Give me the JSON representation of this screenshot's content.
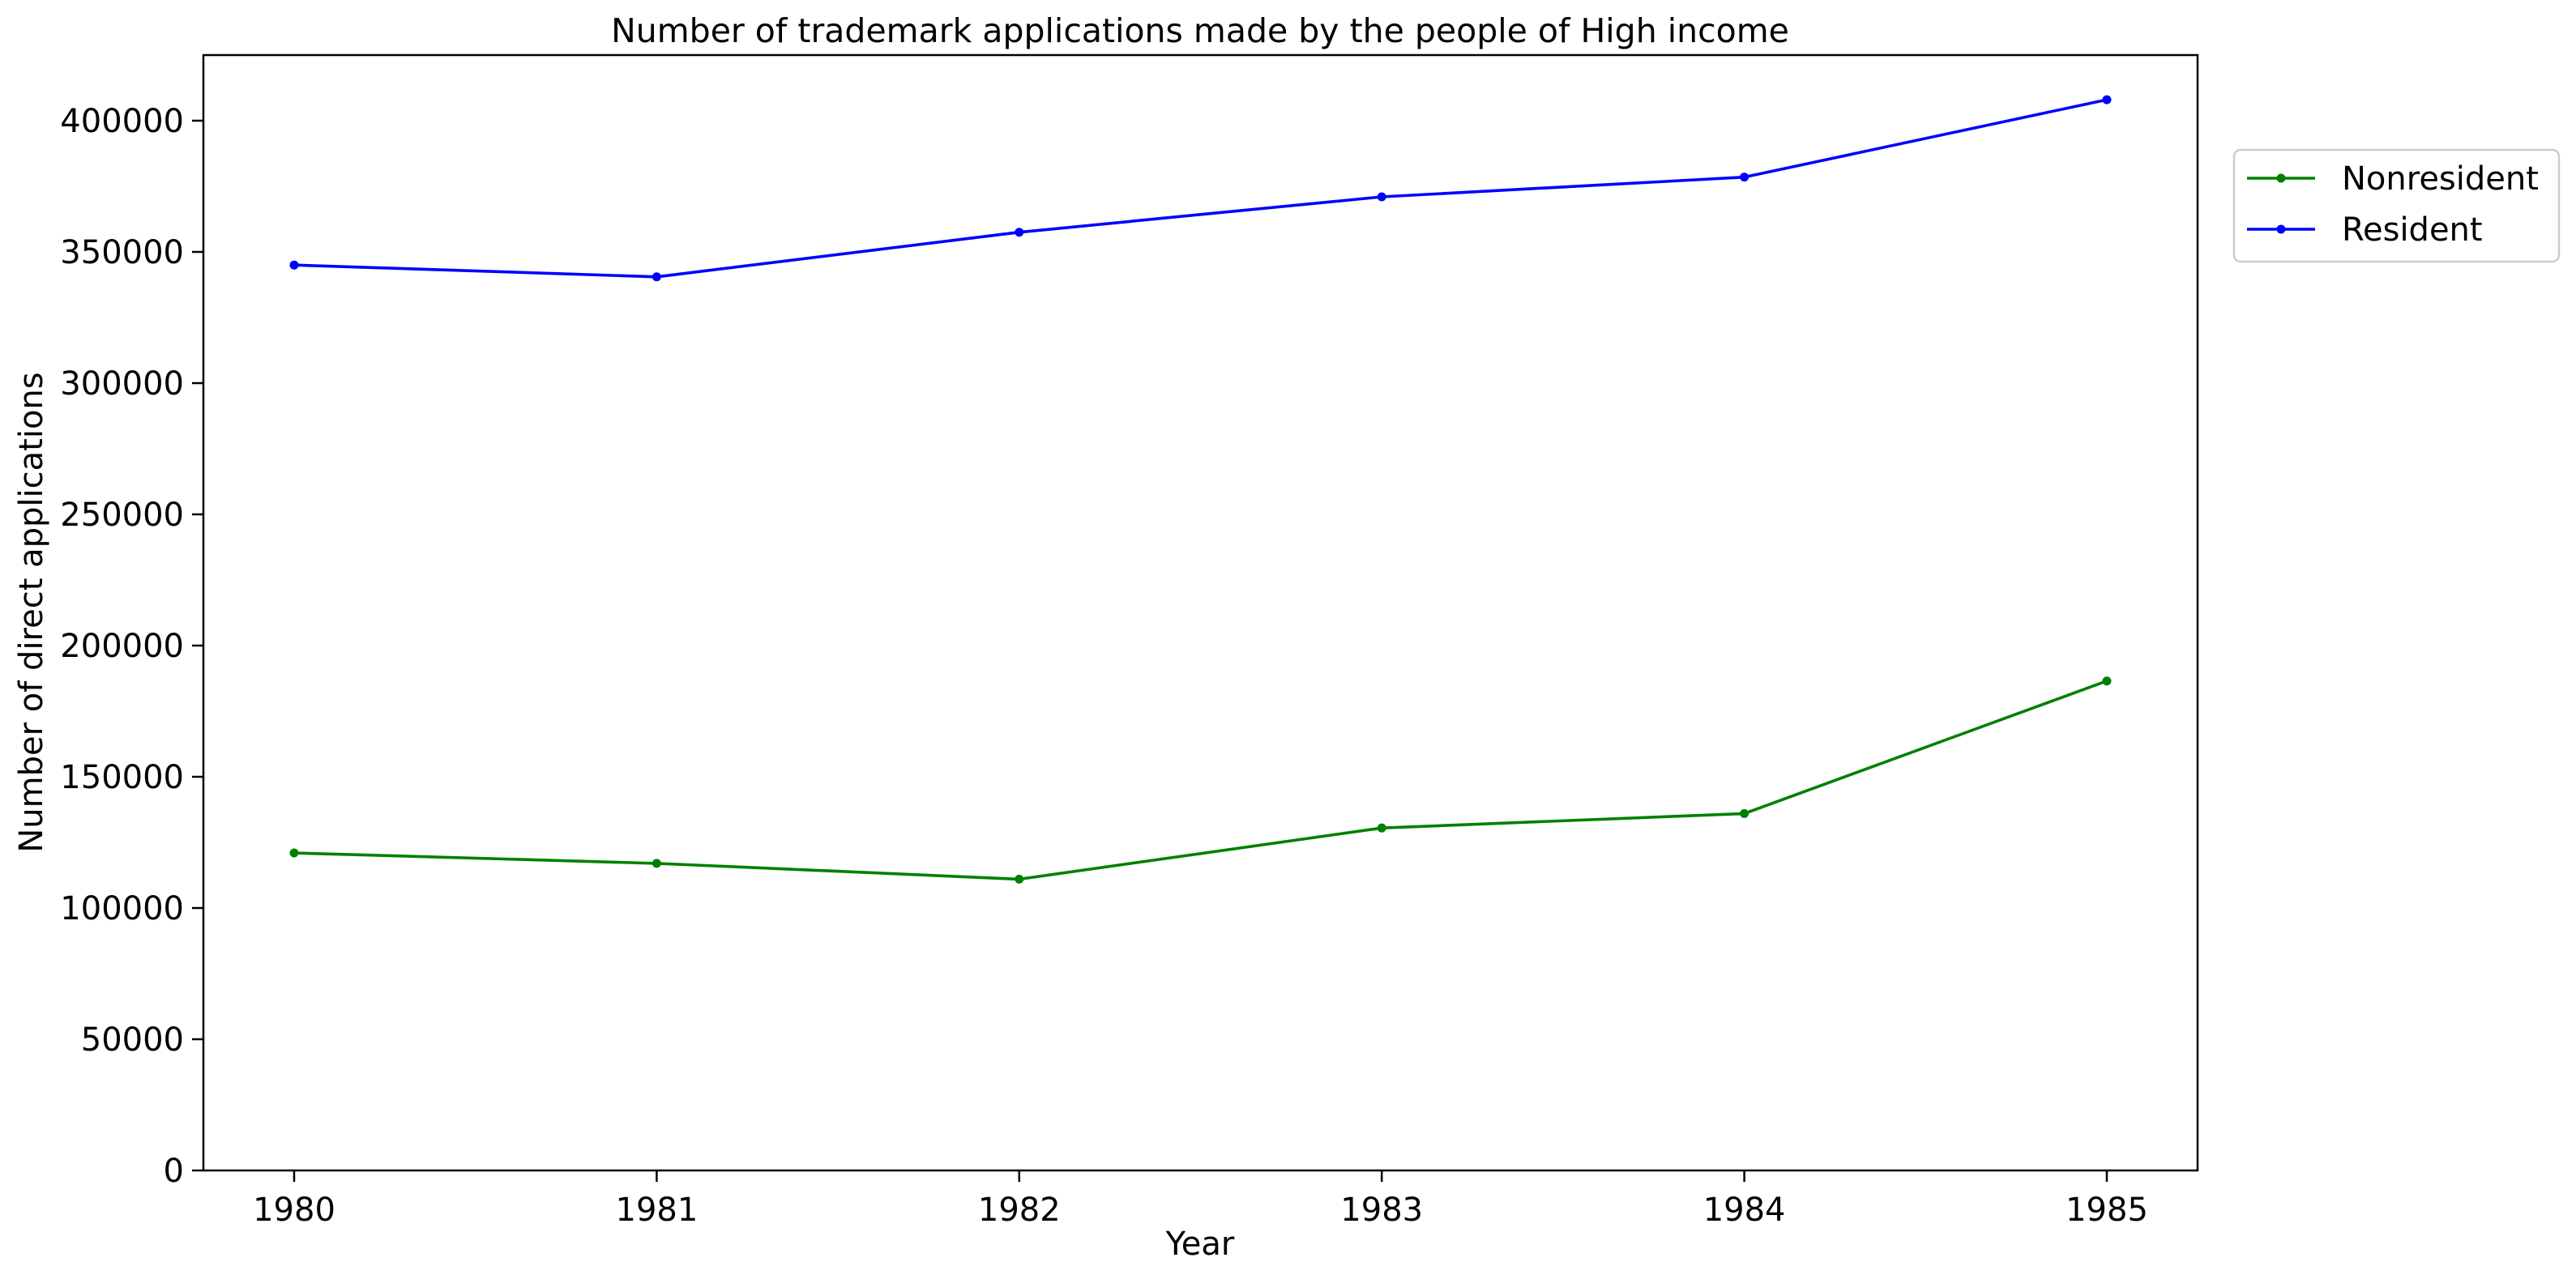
{
  "chart_data": {
    "type": "line",
    "title": "Number of trademark applications made by the people of High income",
    "xlabel": "Year",
    "ylabel": "Number of direct applications",
    "x": [
      "1980",
      "1981",
      "1982",
      "1983",
      "1984",
      "1985"
    ],
    "ylim": [
      0,
      425000
    ],
    "yticks": [
      "0",
      "50000",
      "100000",
      "150000",
      "200000",
      "250000",
      "300000",
      "350000",
      "400000"
    ],
    "grid": false,
    "legend_position": "outside-top-right",
    "series": [
      {
        "name": "Nonresident",
        "color": "#008000",
        "values": [
          121000,
          117000,
          111000,
          130500,
          136000,
          186500
        ]
      },
      {
        "name": "Resident",
        "color": "#0000ff",
        "values": [
          345000,
          340500,
          357500,
          371000,
          378500,
          408000
        ]
      }
    ]
  }
}
